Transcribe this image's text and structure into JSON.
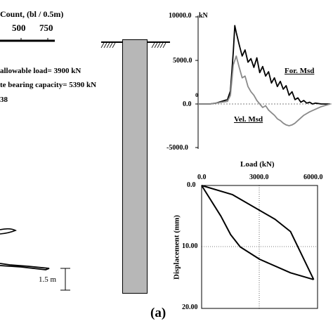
{
  "left_panel": {
    "blow_count_label": "Count, (bl / 0.5m)",
    "tick_500": "500",
    "tick_750": "750",
    "allowable_load": "allowable load= 3900 kN",
    "bearing_capacity": "te bearing capacity= 5390 kN",
    "partial_value": "38",
    "scale_label": "1.5 m"
  },
  "signal_chart": {
    "y_ticks": [
      "10000.0",
      "5000.0",
      "0.0",
      "-5000.0"
    ],
    "unit": "kN",
    "origin_label": "0",
    "force_label": "For. Msd",
    "velocity_label": "Vel. Msd"
  },
  "load_chart": {
    "title": "Load (kN)",
    "x_ticks": [
      "0.0",
      "3000.0",
      "6000.0"
    ],
    "y_ticks": [
      "0.0",
      "10.00",
      "20.00"
    ],
    "ylabel": "Displacement (mm)"
  },
  "figure_label": "(a)",
  "chart_data": [
    {
      "type": "line",
      "series": [
        {
          "name": "For. Msd",
          "x": [
            0,
            2,
            4,
            6,
            8,
            10,
            11,
            12,
            12.5,
            13,
            14,
            15,
            16,
            17,
            18,
            19,
            20,
            21,
            22,
            23,
            24,
            25,
            26,
            27,
            28,
            29,
            30,
            31,
            32,
            33,
            34,
            35,
            36,
            37,
            38,
            39,
            40,
            42,
            45
          ],
          "y": [
            0,
            0,
            0,
            100,
            300,
            500,
            1500,
            6000,
            9000,
            8200,
            6800,
            5500,
            6200,
            4800,
            5200,
            4200,
            5300,
            3600,
            4300,
            3200,
            3700,
            2400,
            3000,
            2000,
            2600,
            1700,
            2100,
            1000,
            1400,
            500,
            700,
            200,
            400,
            100,
            200,
            0,
            100,
            0,
            0
          ]
        },
        {
          "name": "Vel. Msd",
          "x": [
            0,
            2,
            4,
            6,
            8,
            10,
            11,
            12,
            13,
            14,
            15,
            16,
            17,
            18,
            19,
            20,
            21,
            22,
            23,
            24,
            25,
            26,
            27,
            28,
            29,
            30,
            31,
            32,
            33,
            34,
            35,
            36,
            37,
            38,
            40,
            42,
            45
          ],
          "y": [
            0,
            0,
            0,
            100,
            200,
            300,
            1000,
            4500,
            5500,
            4200,
            3000,
            3200,
            2000,
            1400,
            1000,
            400,
            0,
            -400,
            -200,
            -700,
            -1000,
            -1300,
            -1700,
            -1900,
            -2200,
            -2400,
            -2500,
            -2400,
            -2200,
            -1900,
            -1600,
            -1300,
            -1100,
            -900,
            -600,
            -300,
            0
          ]
        }
      ],
      "ylim": [
        -5000,
        10000
      ]
    },
    {
      "type": "line",
      "title": "Load (kN)",
      "ylabel": "Displacement (mm)",
      "xlim": [
        0,
        6000
      ],
      "ylim": [
        0,
        20
      ],
      "series": [
        {
          "name": "",
          "x": [
            0,
            1600,
            3800,
            4600,
            5800
          ],
          "y": [
            0,
            1.5,
            5.5,
            7.5,
            15.3
          ]
        },
        {
          "name": "",
          "x": [
            5800,
            4600,
            3000,
            2000,
            1500,
            1000,
            0
          ],
          "y": [
            15.3,
            14.2,
            12,
            10,
            8,
            5,
            0
          ]
        }
      ]
    }
  ]
}
